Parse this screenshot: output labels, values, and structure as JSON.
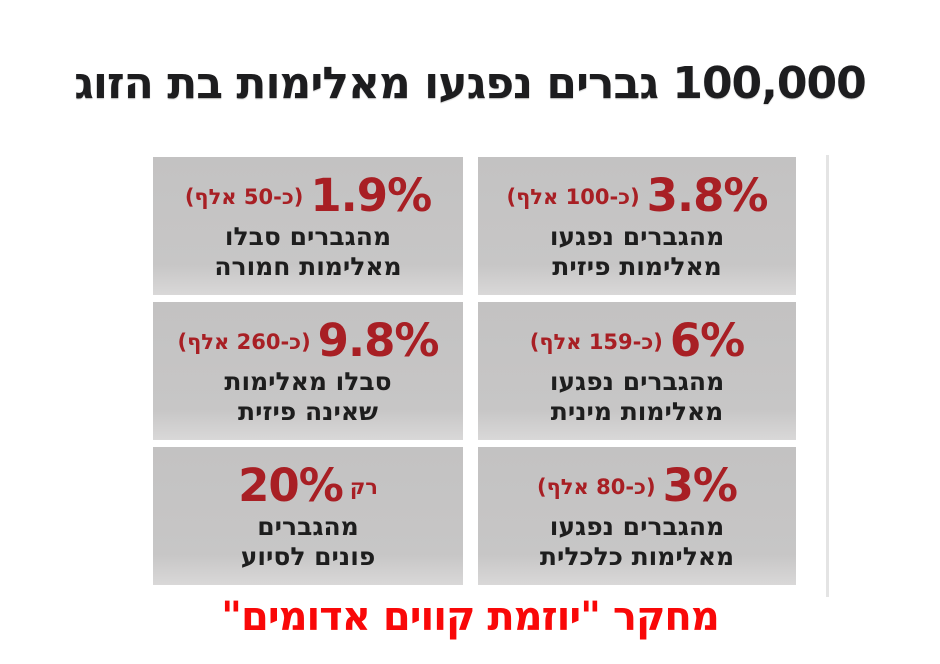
{
  "title": "100,000 גברים נפגעו מאלימות בת הזוג",
  "footer": "מחקר \"יוזמת קווים אדומים\"",
  "colors": {
    "title_text": "#1d1d1f",
    "stat_red": "#a81f24",
    "footer_red": "#f90808",
    "card_background": "#c6c5c5",
    "divider_gray": "#e4e4e4",
    "page_background": "#ffffff"
  },
  "stats": [
    {
      "percent": "3.8%",
      "note": "(כ-100 אלף)",
      "line1": "מהגברים נפגעו",
      "line2": "מאלימות פיזית"
    },
    {
      "percent": "1.9%",
      "note": "(כ-50 אלף)",
      "line1": "מהגברים סבלו",
      "line2": "מאלימות חמורה"
    },
    {
      "percent": "6%",
      "note": "(כ-159 אלף)",
      "line1": "מהגברים נפגעו",
      "line2": "מאלימות מינית"
    },
    {
      "percent": "9.8%",
      "note": "(כ-260 אלף)",
      "line1": "סבלו מאלימות",
      "line2": "שאינה פיזית"
    },
    {
      "percent": "3%",
      "note": "(כ-80 אלף)",
      "line1": "מהגברים נפגעו",
      "line2": "מאלימות כלכלית"
    },
    {
      "percent": "20%",
      "prefix": "רק",
      "line1": "מהגברים",
      "line2": "פונים לסיוע"
    }
  ],
  "chart_data": {
    "type": "table",
    "title": "100,000 גברים נפגעו מאלימות בת הזוג",
    "source": "מחקר \"יוזמת קווים אדומים\"",
    "rows": [
      {
        "label": "מהגברים נפגעו מאלימות פיזית",
        "percent": 3.8,
        "approx_count": "כ-100 אלף"
      },
      {
        "label": "מהגברים סבלו מאלימות חמורה",
        "percent": 1.9,
        "approx_count": "כ-50 אלף"
      },
      {
        "label": "מהגברים נפגעו מאלימות מינית",
        "percent": 6,
        "approx_count": "כ-159 אלף"
      },
      {
        "label": "סבלו מאלימות שאינה פיזית",
        "percent": 9.8,
        "approx_count": "כ-260 אלף"
      },
      {
        "label": "מהגברים נפגעו מאלימות כלכלית",
        "percent": 3,
        "approx_count": "כ-80 אלף"
      },
      {
        "label": "רק מהגברים פונים לסיוע",
        "percent": 20,
        "approx_count": ""
      }
    ]
  }
}
